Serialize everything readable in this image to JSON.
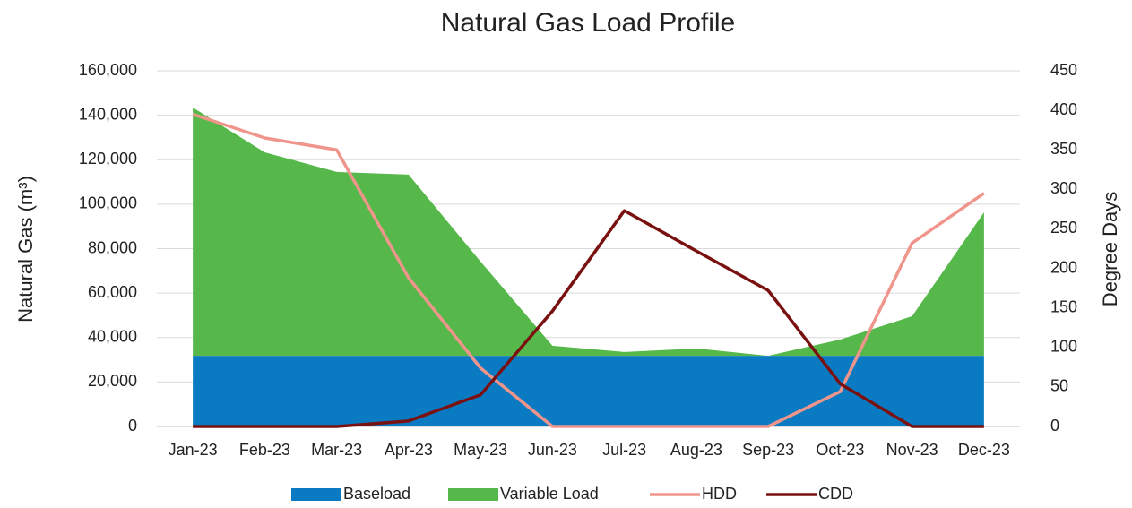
{
  "chart_data": {
    "type": "combo",
    "title": "Natural Gas Load Profile",
    "y_label": "Natural Gas (m³)",
    "y2_label": "Degree Days",
    "categories": [
      "Jan-23",
      "Feb-23",
      "Mar-23",
      "Apr-23",
      "May-23",
      "Jun-23",
      "Jul-23",
      "Aug-23",
      "Sep-23",
      "Oct-23",
      "Nov-23",
      "Dec-23"
    ],
    "series": [
      {
        "name": "Baseload",
        "type": "area",
        "stacked": true,
        "color": "#0a7bc2",
        "values": [
          31800,
          31800,
          31800,
          31800,
          31800,
          31800,
          31800,
          31800,
          31800,
          31800,
          31800,
          31800
        ]
      },
      {
        "name": "Variable Load",
        "type": "area",
        "stacked": true,
        "color": "#56b84a",
        "values": [
          111700,
          91500,
          82700,
          81500,
          42400,
          4500,
          1700,
          3300,
          0,
          7300,
          17800,
          64500
        ]
      },
      {
        "name": "HDD",
        "type": "line",
        "axis": "y2",
        "color": "#f0958c",
        "values": [
          395,
          365,
          350,
          188,
          74,
          0,
          0,
          0,
          0,
          44,
          232,
          295
        ]
      },
      {
        "name": "CDD",
        "type": "line",
        "axis": "y2",
        "color": "#7a1111",
        "values": [
          0,
          0,
          0,
          7,
          40,
          146,
          273,
          222,
          172,
          54,
          0,
          0
        ]
      }
    ],
    "ylim": [
      0,
      160000
    ],
    "yticks": [
      0,
      {
        "value": 20000,
        "label": "20,000"
      },
      {
        "value": 40000,
        "label": "40,000"
      },
      {
        "value": 60000,
        "label": "60,000"
      },
      {
        "value": 80000,
        "label": "80,000"
      },
      {
        "value": 100000,
        "label": "100,000"
      },
      {
        "value": 120000,
        "label": "120,000"
      },
      {
        "value": 140000,
        "label": "140,000"
      },
      {
        "value": 160000,
        "label": "160,000"
      }
    ],
    "y2lim": [
      0,
      450
    ],
    "y2ticks": [
      0,
      50,
      100,
      150,
      200,
      250,
      300,
      350,
      400,
      450
    ],
    "grid": true,
    "legend": "bottom"
  }
}
